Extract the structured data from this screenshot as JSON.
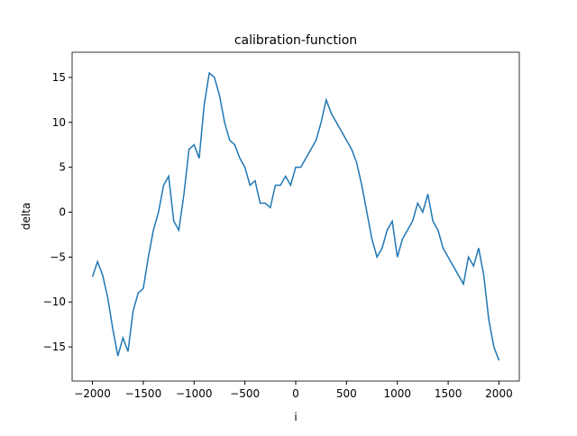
{
  "chart_data": {
    "type": "line",
    "title": "calibration-function",
    "xlabel": "i",
    "ylabel": "delta",
    "x": [
      -2000,
      -1950,
      -1900,
      -1850,
      -1800,
      -1750,
      -1700,
      -1650,
      -1600,
      -1550,
      -1500,
      -1450,
      -1400,
      -1350,
      -1300,
      -1250,
      -1200,
      -1150,
      -1100,
      -1050,
      -1000,
      -950,
      -900,
      -850,
      -800,
      -750,
      -700,
      -650,
      -600,
      -550,
      -500,
      -450,
      -400,
      -350,
      -300,
      -250,
      -200,
      -150,
      -100,
      -50,
      0,
      50,
      100,
      150,
      200,
      250,
      300,
      350,
      400,
      450,
      500,
      550,
      600,
      650,
      700,
      750,
      800,
      850,
      900,
      950,
      1000,
      1050,
      1100,
      1150,
      1200,
      1250,
      1300,
      1350,
      1400,
      1450,
      1500,
      1550,
      1600,
      1650,
      1700,
      1750,
      1800,
      1850,
      1900,
      1950,
      2000
    ],
    "series": [
      {
        "name": "delta",
        "color": "#1f77b4",
        "values": [
          -7.2,
          -5.5,
          -7,
          -9.5,
          -13,
          -16,
          -14,
          -15.5,
          -11,
          -9,
          -8.5,
          -5,
          -2,
          0,
          3,
          4,
          -1,
          -2,
          2,
          7,
          7.5,
          6,
          12,
          15.5,
          15,
          13,
          10,
          8,
          7.5,
          6,
          5,
          3,
          3.5,
          1,
          1,
          0.5,
          3,
          3,
          4,
          3,
          5,
          5,
          6,
          7,
          8,
          10,
          12.5,
          11,
          10,
          9,
          8,
          7,
          5.5,
          3,
          0,
          -3,
          -5,
          -4,
          -2,
          -1,
          -5,
          -3,
          -2,
          -1,
          1,
          0,
          2,
          -1,
          -2,
          -4,
          -5,
          -6,
          -7,
          -8,
          -5,
          -6,
          -4,
          -7,
          -12,
          -15,
          -16.5
        ]
      }
    ],
    "xlim": [
      -2200,
      2200
    ],
    "ylim": [
      -18.8,
      17.8
    ],
    "xticks": [
      {
        "value": -2000,
        "label": "−2000"
      },
      {
        "value": -1500,
        "label": "−1500"
      },
      {
        "value": -1000,
        "label": "−1000"
      },
      {
        "value": -500,
        "label": "−500"
      },
      0,
      500,
      1000,
      1500,
      2000
    ],
    "yticks": [
      {
        "value": -15,
        "label": "−15"
      },
      {
        "value": -10,
        "label": "−10"
      },
      {
        "value": -5,
        "label": "−5"
      },
      0,
      5,
      10,
      15
    ]
  }
}
